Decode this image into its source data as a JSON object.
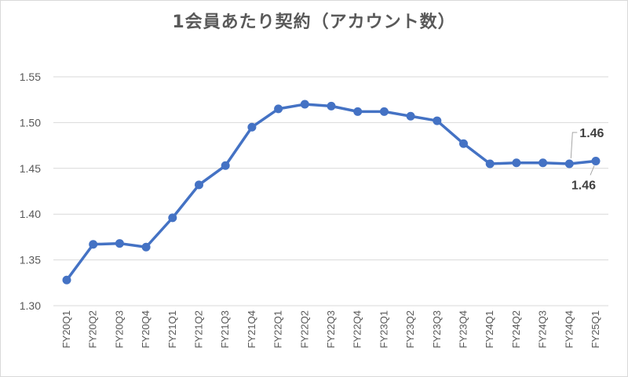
{
  "title": "1会員あたり契約（アカウント数）",
  "chart_data": {
    "type": "line",
    "title": "1会員あたり契約（アカウント数）",
    "xlabel": "",
    "ylabel": "",
    "categories": [
      "FY20Q1",
      "FY20Q2",
      "FY20Q3",
      "FY20Q4",
      "FY21Q1",
      "FY21Q2",
      "FY21Q3",
      "FY21Q4",
      "FY22Q1",
      "FY22Q2",
      "FY22Q3",
      "FY22Q4",
      "FY23Q1",
      "FY23Q2",
      "FY23Q3",
      "FY23Q4",
      "FY24Q1",
      "FY24Q2",
      "FY24Q3",
      "FY24Q4",
      "FY25Q1"
    ],
    "series": [
      {
        "name": "",
        "values": [
          1.328,
          1.367,
          1.368,
          1.364,
          1.396,
          1.432,
          1.453,
          1.495,
          1.515,
          1.52,
          1.518,
          1.512,
          1.512,
          1.507,
          1.502,
          1.477,
          1.455,
          1.456,
          1.456,
          1.455,
          1.458
        ],
        "color": "#4472c4"
      }
    ],
    "ylim": [
      1.3,
      1.55
    ],
    "yticks": [
      "1.30",
      "1.35",
      "1.40",
      "1.45",
      "1.50",
      "1.55"
    ],
    "grid": true,
    "legend": "none",
    "data_labels": [
      {
        "category": "FY24Q4",
        "text": "1.46"
      },
      {
        "category": "FY25Q1",
        "text": "1.46"
      }
    ]
  }
}
